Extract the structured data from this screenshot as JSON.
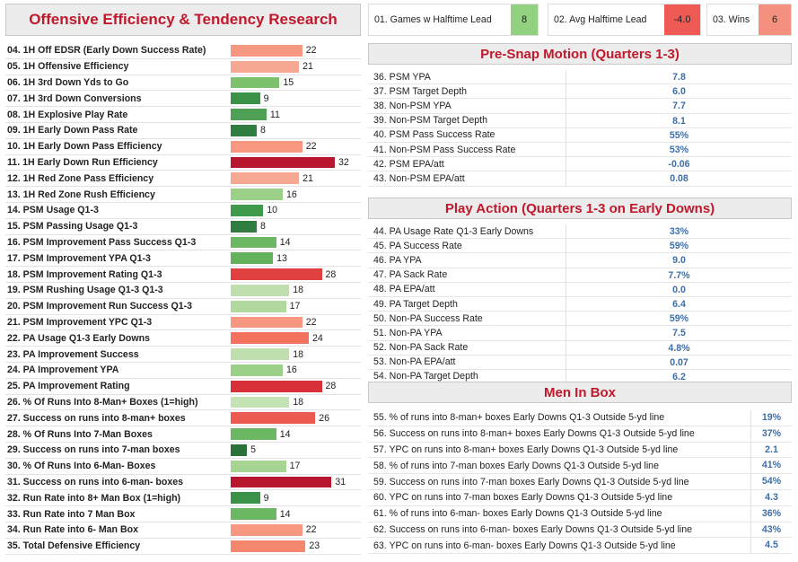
{
  "title": "Offensive Efficiency & Tendency Research",
  "kpis": [
    {
      "label": "01. Games w Halftime Lead",
      "value": "8",
      "color": "#92d180"
    },
    {
      "label": "02. Avg Halftime Lead",
      "value": "-4.0",
      "color": "#ef5a55"
    },
    {
      "label": "03. Wins",
      "value": "6",
      "color": "#f3917e"
    }
  ],
  "left_rows": [
    {
      "label": "04. 1H Off EDSR (Early Down Success Rate)",
      "value": 22,
      "color": "#f6977f"
    },
    {
      "label": "05. 1H Offensive Efficiency",
      "value": 21,
      "color": "#f6a893"
    },
    {
      "label": "06. 1H 3rd Down Yds to Go",
      "value": 15,
      "color": "#7cc26c"
    },
    {
      "label": "07. 1H 3rd Down Conversions",
      "value": 9,
      "color": "#3a9148"
    },
    {
      "label": "08. 1H Explosive Play Rate",
      "value": 11,
      "color": "#4ea154"
    },
    {
      "label": "09. 1H Early Down Pass Rate",
      "value": 8,
      "color": "#2f7d3f"
    },
    {
      "label": "10. 1H Early Down Pass Efficiency",
      "value": 22,
      "color": "#f6977f"
    },
    {
      "label": "11. 1H Early Down Run Efficiency",
      "value": 32,
      "color": "#b8162f"
    },
    {
      "label": "12. 1H Red Zone Pass Efficiency",
      "value": 21,
      "color": "#f6a893"
    },
    {
      "label": "13. 1H Red Zone Rush Efficiency",
      "value": 16,
      "color": "#9ad088"
    },
    {
      "label": "14. PSM Usage Q1-3",
      "value": 10,
      "color": "#3f9a4b"
    },
    {
      "label": "15. PSM Passing Usage Q1-3",
      "value": 8,
      "color": "#2f7d3f"
    },
    {
      "label": "16. PSM Improvement Pass Success Q1-3",
      "value": 14,
      "color": "#6cb862"
    },
    {
      "label": "17. PSM Improvement YPA Q1-3",
      "value": 13,
      "color": "#62b25c"
    },
    {
      "label": "18. PSM Improvement Rating Q1-3",
      "value": 28,
      "color": "#e0403f"
    },
    {
      "label": "19. PSM Rushing Usage Q1-3 Q1-3",
      "value": 18,
      "color": "#bfe0ae"
    },
    {
      "label": "20. PSM Improvement Run Success Q1-3",
      "value": 17,
      "color": "#b1d99e"
    },
    {
      "label": "21. PSM Improvement YPC Q1-3",
      "value": 22,
      "color": "#f6977f"
    },
    {
      "label": "22. PA Usage Q1-3 Early Downs",
      "value": 24,
      "color": "#f2725d"
    },
    {
      "label": "23. PA Improvement Success",
      "value": 18,
      "color": "#bfe0ae"
    },
    {
      "label": "24. PA Improvement YPA",
      "value": 16,
      "color": "#9ad088"
    },
    {
      "label": "25. PA Improvement Rating",
      "value": 28,
      "color": "#d83038"
    },
    {
      "label": "26. % Of Runs Into 8-Man+ Boxes (1=high)",
      "value": 18,
      "color": "#c4e3b4"
    },
    {
      "label": "27. Success on runs into 8-man+ boxes",
      "value": 26,
      "color": "#ea5a4f"
    },
    {
      "label": "28. % Of Runs Into 7-Man Boxes",
      "value": 14,
      "color": "#6cb862"
    },
    {
      "label": "29. Success on runs into 7-man boxes",
      "value": 5,
      "color": "#2a7239"
    },
    {
      "label": "30. % Of Runs Into 6-Man- Boxes",
      "value": 17,
      "color": "#a6d493"
    },
    {
      "label": "31. Success on runs into 6-man- boxes",
      "value": 31,
      "color": "#b8162f"
    },
    {
      "label": "32. Run Rate into 8+ Man Box (1=high)",
      "value": 9,
      "color": "#3a9148"
    },
    {
      "label": "33. Run Rate into 7 Man Box",
      "value": 14,
      "color": "#6cb862"
    },
    {
      "label": "34. Run Rate into 6- Man Box",
      "value": 22,
      "color": "#f6977f"
    },
    {
      "label": "35. Total Defensive Efficiency",
      "value": 23,
      "color": "#f5876f"
    }
  ],
  "psm": {
    "title": "Pre-Snap Motion (Quarters 1-3)",
    "rows": [
      {
        "label": "36. PSM YPA",
        "value": "7.8"
      },
      {
        "label": "37. PSM Target Depth",
        "value": "6.0"
      },
      {
        "label": "38. Non-PSM YPA",
        "value": "7.7"
      },
      {
        "label": "39. Non-PSM Target Depth",
        "value": "8.1"
      },
      {
        "label": "40. PSM Pass Success Rate",
        "value": "55%"
      },
      {
        "label": "41. Non-PSM Pass Success Rate",
        "value": "53%"
      },
      {
        "label": "42. PSM EPA/att",
        "value": "-0.06"
      },
      {
        "label": "43. Non-PSM EPA/att",
        "value": "0.08"
      }
    ]
  },
  "pa": {
    "title": "Play Action (Quarters 1-3 on Early Downs)",
    "rows": [
      {
        "label": "44. PA Usage Rate Q1-3 Early Downs",
        "value": "33%"
      },
      {
        "label": "45. PA Success Rate",
        "value": "59%"
      },
      {
        "label": "46. PA YPA",
        "value": "9.0"
      },
      {
        "label": "47. PA Sack Rate",
        "value": "7.7%"
      },
      {
        "label": "48. PA EPA/att",
        "value": "0.0"
      },
      {
        "label": "49. PA Target Depth",
        "value": "6.4"
      },
      {
        "label": "50. Non-PA Success Rate",
        "value": "59%"
      },
      {
        "label": "51. Non-PA YPA",
        "value": "7.5"
      },
      {
        "label": "52. Non-PA Sack Rate",
        "value": "4.8%"
      },
      {
        "label": "53. Non-PA EPA/att",
        "value": "0.07"
      },
      {
        "label": "54. Non-PA Target Depth",
        "value": "6.2"
      }
    ]
  },
  "mib": {
    "title": "Men In Box",
    "rows": [
      {
        "label": "55. % of runs into 8-man+ boxes Early Downs Q1-3 Outside 5-yd line",
        "value": "19%"
      },
      {
        "label": "56. Success on runs into 8-man+ boxes Early Downs Q1-3 Outside 5-yd line",
        "value": "37%"
      },
      {
        "label": "57. YPC on runs into 8-man+ boxes Early Downs Q1-3 Outside 5-yd line",
        "value": "2.1"
      },
      {
        "label": "58. % of runs into 7-man boxes Early Downs Q1-3 Outside 5-yd line",
        "value": "41%"
      },
      {
        "label": "59. Success on runs into 7-man boxes Early Downs Q1-3 Outside 5-yd line",
        "value": "54%"
      },
      {
        "label": "60. YPC on runs into 7-man boxes Early Downs Q1-3 Outside 5-yd line",
        "value": "4.3"
      },
      {
        "label": "61. % of runs into 6-man- boxes Early Downs Q1-3 Outside 5-yd line",
        "value": "36%"
      },
      {
        "label": "62. Success on runs into 6-man- boxes Early Downs Q1-3 Outside 5-yd line",
        "value": "43%"
      },
      {
        "label": "63. YPC on runs into 6-man- boxes Early Downs Q1-3 Outside 5-yd line",
        "value": "4.5"
      }
    ]
  }
}
